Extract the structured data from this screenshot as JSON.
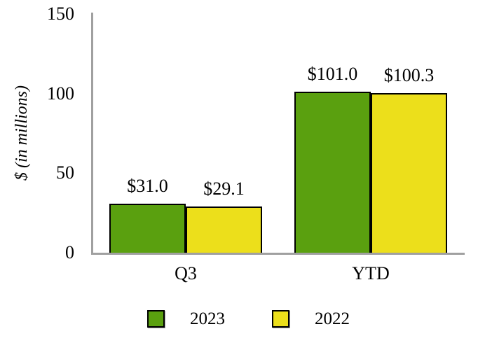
{
  "chart_data": {
    "type": "bar",
    "title": "",
    "categories": [
      "Q3",
      "YTD"
    ],
    "series": [
      {
        "name": "2023",
        "color": "#5aa00f",
        "values": [
          31.0,
          101.0
        ],
        "data_labels": [
          "$31.0",
          "$101.0"
        ]
      },
      {
        "name": "2022",
        "color": "#ecdf1b",
        "values": [
          29.1,
          100.3
        ],
        "data_labels": [
          "$29.1",
          "$100.3"
        ]
      }
    ],
    "xlabel": "",
    "ylabel": "$ (in millions)",
    "ylim": [
      0,
      150
    ],
    "yticks": [
      0,
      50,
      100,
      150
    ],
    "grid": false,
    "legend_position": "bottom"
  },
  "colors": {
    "green_2023": "#5aa00f",
    "yellow_2022": "#ecdf1b",
    "axis_line": "#a0a0a0",
    "bar_border": "#000000",
    "background": "#ffffff",
    "text": "#000000"
  }
}
